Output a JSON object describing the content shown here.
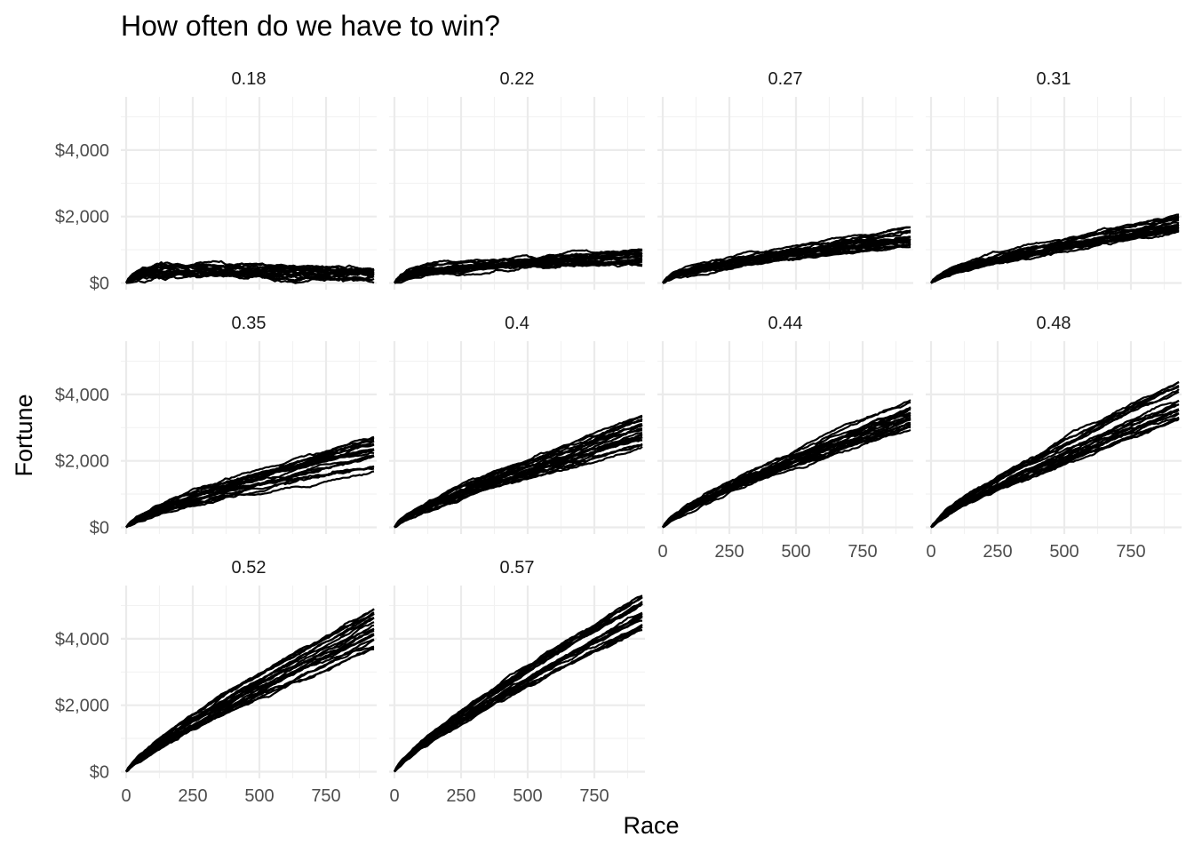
{
  "chart_data": {
    "type": "line",
    "title": "How often do we have to win?",
    "xlabel": "Race",
    "ylabel": "Fortune",
    "xlim": [
      -20,
      940
    ],
    "ylim": [
      -200,
      5600
    ],
    "x_ticks": [
      0,
      250,
      500,
      750
    ],
    "x_tick_labels": [
      "0",
      "250",
      "500",
      "750"
    ],
    "y_ticks": [
      0,
      2000,
      4000
    ],
    "y_tick_labels": [
      "$0",
      "$2,000",
      "$4,000"
    ],
    "grid": true,
    "legend": "none",
    "series_per_panel": 20,
    "x_max": 930,
    "panels": [
      {
        "label": "0.18",
        "final_mean": 300,
        "final_spread": 380,
        "early_bump": 350,
        "rough": 90,
        "show_x": false,
        "show_y": true
      },
      {
        "label": "0.22",
        "final_mean": 800,
        "final_spread": 500,
        "early_bump": 280,
        "rough": 70,
        "show_x": false,
        "show_y": false
      },
      {
        "label": "0.27",
        "final_mean": 1350,
        "final_spread": 550,
        "early_bump": 200,
        "rough": 60,
        "show_x": false,
        "show_y": false
      },
      {
        "label": "0.31",
        "final_mean": 1800,
        "final_spread": 600,
        "early_bump": 200,
        "rough": 60,
        "show_x": false,
        "show_y": false
      },
      {
        "label": "0.35",
        "final_mean": 2250,
        "final_spread": 1100,
        "early_bump": 150,
        "rough": 60,
        "show_x": false,
        "show_y": true
      },
      {
        "label": "0.4",
        "final_mean": 2950,
        "final_spread": 1100,
        "early_bump": 120,
        "rough": 60,
        "show_x": false,
        "show_y": false
      },
      {
        "label": "0.44",
        "final_mean": 3400,
        "final_spread": 850,
        "early_bump": 100,
        "rough": 60,
        "show_x": true,
        "show_y": false
      },
      {
        "label": "0.48",
        "final_mean": 3800,
        "final_spread": 1200,
        "early_bump": 100,
        "rough": 60,
        "show_x": true,
        "show_y": false
      },
      {
        "label": "0.52",
        "final_mean": 4300,
        "final_spread": 1250,
        "early_bump": 80,
        "rough": 60,
        "show_x": true,
        "show_y": true
      },
      {
        "label": "0.57",
        "final_mean": 4800,
        "final_spread": 1500,
        "early_bump": 80,
        "rough": 60,
        "show_x": true,
        "show_y": false
      }
    ]
  }
}
